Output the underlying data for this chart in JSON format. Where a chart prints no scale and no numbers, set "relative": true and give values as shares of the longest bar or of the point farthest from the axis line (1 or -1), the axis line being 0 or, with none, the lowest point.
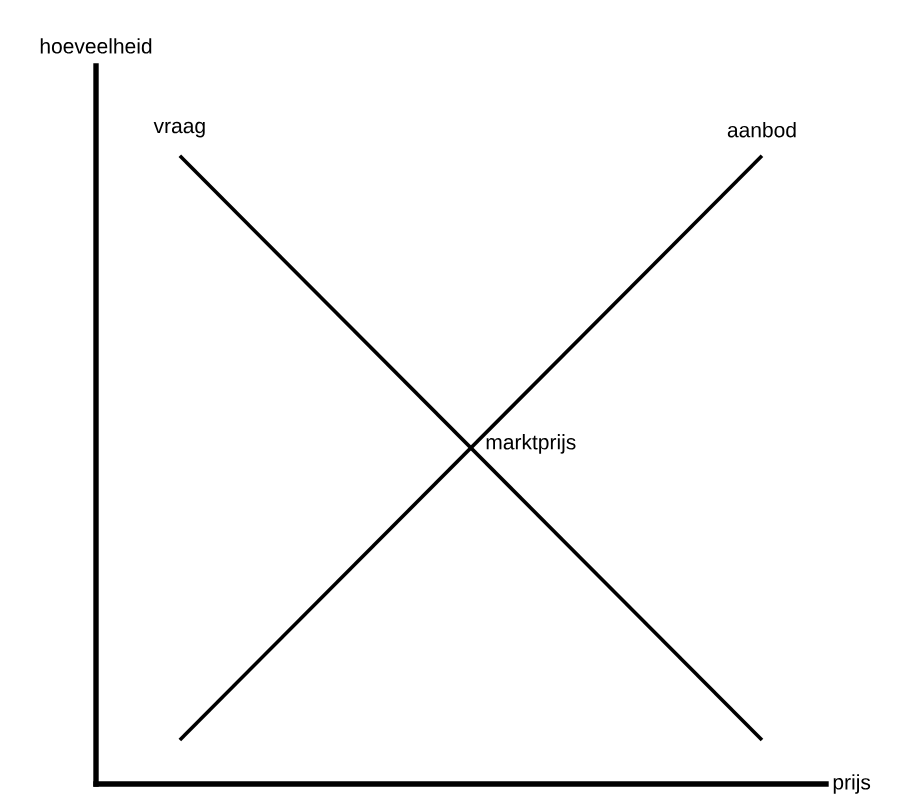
{
  "chart_data": {
    "type": "line",
    "relative": true,
    "xlabel": "prijs",
    "ylabel": "hoeveelheid",
    "categories": [
      null,
      null
    ],
    "tick_labels": false,
    "series": [
      {
        "name": "vraag",
        "color": "#000000",
        "values": [
          1,
          0.07
        ]
      },
      {
        "name": "aanbod",
        "color": "#000000",
        "values": [
          0.07,
          1
        ]
      }
    ],
    "annotations": [
      "marktprijs"
    ]
  }
}
